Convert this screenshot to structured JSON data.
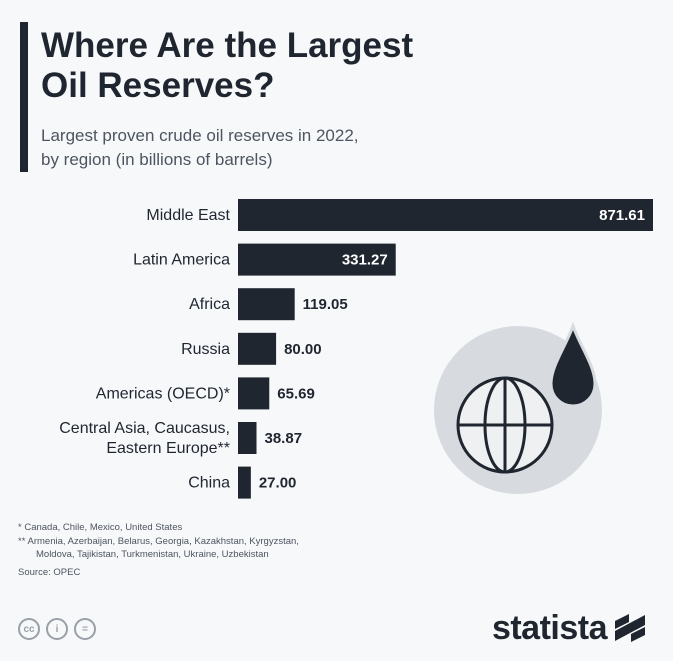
{
  "header": {
    "title_line1": "Where Are the Largest",
    "title_line2": "Oil Reserves?",
    "subtitle_line1": "Largest proven crude oil reserves in 2022,",
    "subtitle_line2": "by region (in billions of barrels)"
  },
  "chart_data": {
    "type": "bar",
    "orientation": "horizontal",
    "categories": [
      [
        "Middle East"
      ],
      [
        "Latin America"
      ],
      [
        "Africa"
      ],
      [
        "Russia"
      ],
      [
        "Americas (OECD)*"
      ],
      [
        "Central Asia, Caucasus,",
        "Eastern Europe**"
      ],
      [
        "China"
      ]
    ],
    "values": [
      871.61,
      331.27,
      119.05,
      80.0,
      65.69,
      38.87,
      27.0
    ],
    "value_labels": [
      "871.61",
      "331.27",
      "119.05",
      "80.00",
      "65.69",
      "38.87",
      "27.00"
    ],
    "bar_color": "#1f2630",
    "axis_max": 871.61
  },
  "footnotes": {
    "note1": "*  Canada, Chile, Mexico, United States",
    "note2_line1": "** Armenia, Azerbaijan, Belarus, Georgia, Kazakhstan, Kyrgyzstan,",
    "note2_line2": "Moldova, Tajikistan, Turkmenistan, Ukraine, Uzbekistan",
    "source": "Source: OPEC"
  },
  "license_icons": [
    "cc-icon",
    "attribution-icon",
    "no-derivatives-icon"
  ],
  "license_glyphs": [
    "cc",
    "i",
    "="
  ],
  "brand": {
    "name": "statista"
  },
  "colors": {
    "dark": "#1f2630",
    "illustration_circle": "#d7dbe0",
    "background": "#f7f8fa"
  }
}
